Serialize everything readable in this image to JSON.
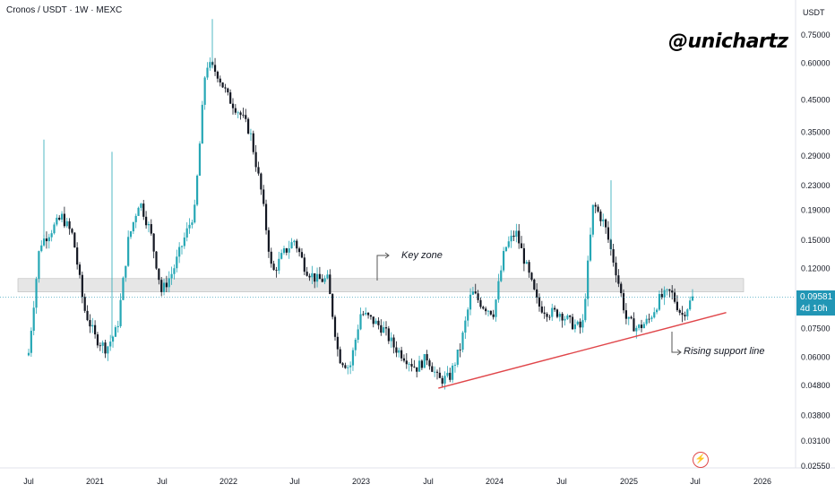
{
  "header": {
    "title": "Cronos / USDT · 1W · MEXC"
  },
  "watermark": "@unichartz",
  "annotations": {
    "key_zone": "Key zone",
    "support": "Rising support line"
  },
  "price_tag": {
    "price": "0.09581",
    "countdown": "4d 10h"
  },
  "axis": {
    "unit": "USDT"
  },
  "colors": {
    "up": "#26a7b5",
    "down": "#131722",
    "support_line": "#e0464a",
    "zone": "#d6d6d6",
    "price_line": "#2196b5"
  },
  "icons": {
    "bolt": "lightning-icon"
  },
  "chart_data": {
    "type": "candlestick",
    "title": "Cronos / USDT · 1W · MEXC",
    "y_scale": "log",
    "ylim": [
      0.0245,
      0.85
    ],
    "y_ticks": [
      "0.75000",
      "0.60000",
      "0.45000",
      "0.35000",
      "0.29000",
      "0.23000",
      "0.19000",
      "0.15000",
      "0.12000",
      "0.09581",
      "0.07500",
      "0.06000",
      "0.04800",
      "0.03800",
      "0.03100",
      "0.02550"
    ],
    "x_ticks": [
      "Jul",
      "2021",
      "Jul",
      "2022",
      "Jul",
      "2023",
      "Jul",
      "2024",
      "Jul",
      "2025",
      "Jul",
      "2026"
    ],
    "key_zone": [
      0.1,
      0.111
    ],
    "support_line": {
      "start": [
        "2023-08",
        0.047
      ],
      "end": [
        "2025-10",
        0.085
      ]
    },
    "last_price": 0.09581,
    "weekly_close_path": [
      [
        "2020-07",
        0.062
      ],
      [
        "2020-08",
        0.145
      ],
      [
        "2020-10",
        0.18
      ],
      [
        "2020-11",
        0.155
      ],
      [
        "2020-12",
        0.088
      ],
      [
        "2021-01",
        0.07
      ],
      [
        "2021-02",
        0.064
      ],
      [
        "2021-03",
        0.075
      ],
      [
        "2021-04",
        0.15
      ],
      [
        "2021-05",
        0.205
      ],
      [
        "2021-06",
        0.16
      ],
      [
        "2021-07",
        0.1
      ],
      [
        "2021-08",
        0.117
      ],
      [
        "2021-09",
        0.15
      ],
      [
        "2021-10",
        0.19
      ],
      [
        "2021-11",
        0.6
      ],
      [
        "2021-12",
        0.56
      ],
      [
        "2022-01",
        0.46
      ],
      [
        "2022-02",
        0.41
      ],
      [
        "2022-03",
        0.35
      ],
      [
        "2022-04",
        0.22
      ],
      [
        "2022-05",
        0.115
      ],
      [
        "2022-06",
        0.135
      ],
      [
        "2022-07",
        0.15
      ],
      [
        "2022-08",
        0.12
      ],
      [
        "2022-09",
        0.11
      ],
      [
        "2022-10",
        0.11
      ],
      [
        "2022-11",
        0.06
      ],
      [
        "2022-12",
        0.055
      ],
      [
        "2023-01",
        0.085
      ],
      [
        "2023-02",
        0.08
      ],
      [
        "2023-03",
        0.075
      ],
      [
        "2023-04",
        0.065
      ],
      [
        "2023-05",
        0.06
      ],
      [
        "2023-06",
        0.055
      ],
      [
        "2023-07",
        0.06
      ],
      [
        "2023-08",
        0.05
      ],
      [
        "2023-09",
        0.051
      ],
      [
        "2023-10",
        0.065
      ],
      [
        "2023-11",
        0.1
      ],
      [
        "2023-12",
        0.09
      ],
      [
        "2024-01",
        0.085
      ],
      [
        "2024-02",
        0.14
      ],
      [
        "2024-03",
        0.16
      ],
      [
        "2024-04",
        0.12
      ],
      [
        "2024-05",
        0.09
      ],
      [
        "2024-06",
        0.085
      ],
      [
        "2024-07",
        0.085
      ],
      [
        "2024-08",
        0.078
      ],
      [
        "2024-09",
        0.075
      ],
      [
        "2024-10",
        0.2
      ],
      [
        "2024-11",
        0.17
      ],
      [
        "2024-12",
        0.12
      ],
      [
        "2025-01",
        0.08
      ],
      [
        "2025-02",
        0.075
      ],
      [
        "2025-03",
        0.08
      ],
      [
        "2025-04",
        0.095
      ],
      [
        "2025-05",
        0.1
      ],
      [
        "2025-06",
        0.083
      ],
      [
        "2025-07",
        0.09581
      ]
    ]
  }
}
